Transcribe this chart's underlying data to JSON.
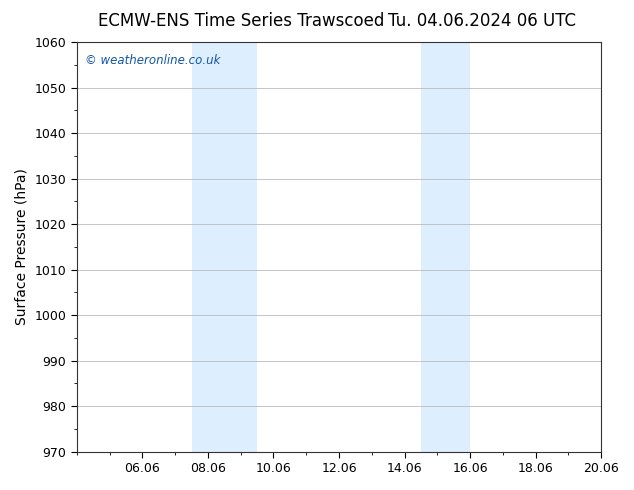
{
  "title_left": "ECMW-ENS Time Series Trawscoed",
  "title_right": "Tu. 04.06.2024 06 UTC",
  "ylabel": "Surface Pressure (hPa)",
  "ylim": [
    970,
    1060
  ],
  "yticks": [
    970,
    980,
    990,
    1000,
    1010,
    1020,
    1030,
    1040,
    1050,
    1060
  ],
  "xlim": [
    0,
    16
  ],
  "xtick_labels": [
    "06.06",
    "08.06",
    "10.06",
    "12.06",
    "14.06",
    "16.06",
    "18.06",
    "20.06"
  ],
  "xtick_positions": [
    2,
    4,
    6,
    8,
    10,
    12,
    14,
    16
  ],
  "shaded_bands": [
    {
      "x_start": 3.5,
      "x_end": 5.5,
      "color": "#ddeeff"
    },
    {
      "x_start": 10.5,
      "x_end": 12.0,
      "color": "#ddeeff"
    }
  ],
  "background_color": "#ffffff",
  "plot_bg_color": "#ffffff",
  "watermark": "© weatheronline.co.uk",
  "watermark_color": "#1155aa",
  "grid_color": "#bbbbbb",
  "title_fontsize": 12,
  "tick_fontsize": 9,
  "ylabel_fontsize": 10
}
